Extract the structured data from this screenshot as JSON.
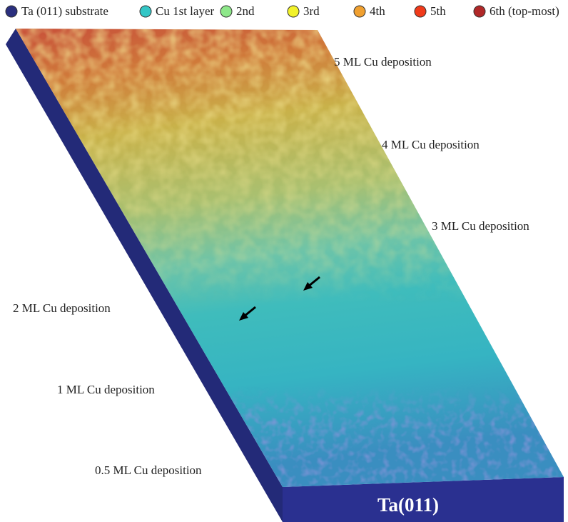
{
  "legend": [
    {
      "label": "Ta (011) substrate",
      "color": "#2a2f7e"
    },
    {
      "label": "Cu 1st layer",
      "color": "#33c6c6"
    },
    {
      "label": "2nd",
      "color": "#8ee88a"
    },
    {
      "label": "3rd",
      "color": "#f2f22a"
    },
    {
      "label": "4th",
      "color": "#f0a030"
    },
    {
      "label": "5th",
      "color": "#f03a1a"
    },
    {
      "label": "6th (top-most)",
      "color": "#b02828"
    }
  ],
  "annotations": [
    "5 ML Cu deposition",
    "4 ML Cu deposition",
    "3 ML Cu deposition",
    "2 ML Cu deposition",
    "1 ML Cu deposition",
    "0.5 ML Cu deposition"
  ],
  "substrate_label": "Ta(011)"
}
